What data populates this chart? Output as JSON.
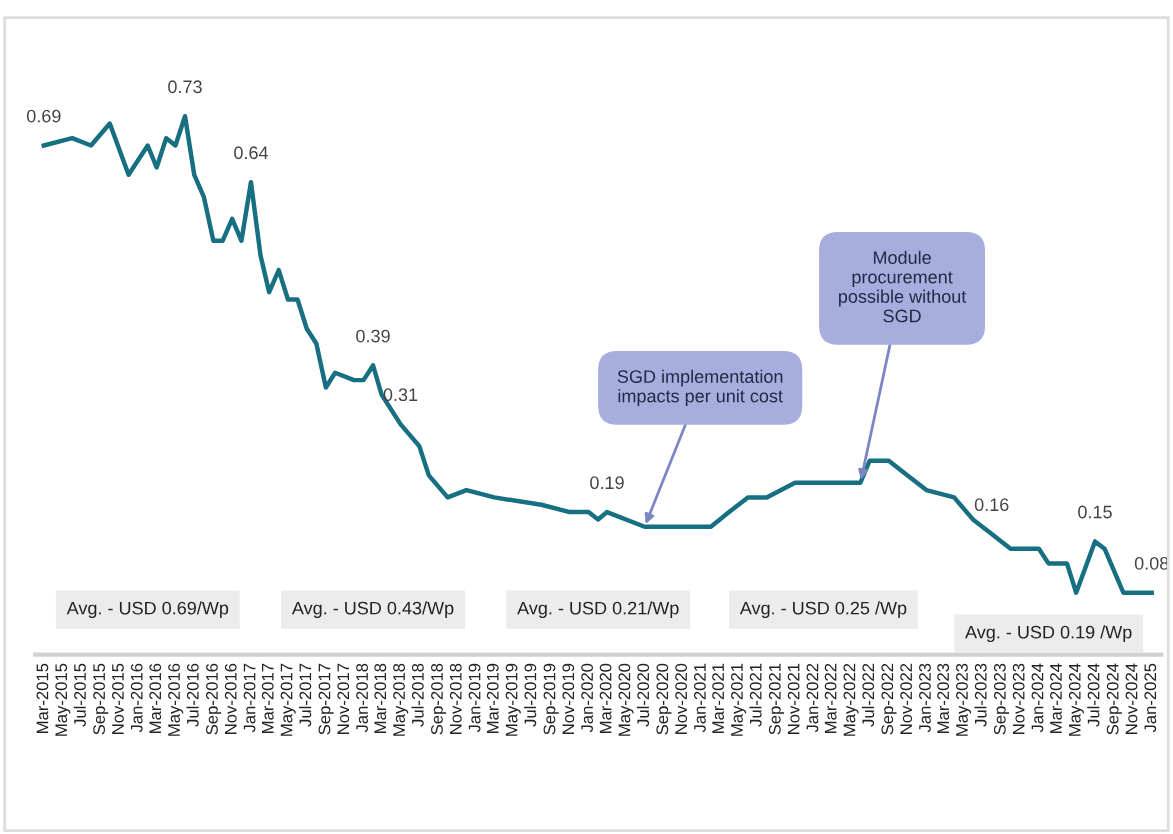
{
  "chart_data": {
    "type": "line",
    "x": [
      "2015-03",
      "2015-06",
      "2015-08",
      "2015-10",
      "2015-12",
      "2016-02",
      "2016-03",
      "2016-04",
      "2016-05",
      "2016-06",
      "2016-07",
      "2016-08",
      "2016-09",
      "2016-10",
      "2016-11",
      "2016-12",
      "2017-01",
      "2017-02",
      "2017-03",
      "2017-04",
      "2017-05",
      "2017-06",
      "2017-07",
      "2017-08",
      "2017-09",
      "2017-10",
      "2017-12",
      "2018-01",
      "2018-02",
      "2018-03",
      "2018-05",
      "2018-07",
      "2018-08",
      "2018-10",
      "2018-12",
      "2019-03",
      "2019-08",
      "2019-11",
      "2020-01",
      "2020-02",
      "2020-03",
      "2020-07",
      "2021-02",
      "2021-04",
      "2021-06",
      "2021-08",
      "2021-11",
      "2022-06",
      "2022-07",
      "2022-09",
      "2022-11",
      "2023-01",
      "2023-04",
      "2023-06",
      "2023-08",
      "2023-10",
      "2024-01",
      "2024-02",
      "2024-04",
      "2024-05",
      "2024-07",
      "2024-08",
      "2024-10",
      "2025-01"
    ],
    "series": [
      {
        "color": "#176f82",
        "values": [
          0.69,
          0.7,
          0.69,
          0.72,
          0.65,
          0.69,
          0.66,
          0.7,
          0.69,
          0.73,
          0.65,
          0.62,
          0.56,
          0.56,
          0.59,
          0.56,
          0.64,
          0.54,
          0.49,
          0.52,
          0.48,
          0.48,
          0.44,
          0.42,
          0.36,
          0.38,
          0.37,
          0.37,
          0.39,
          0.35,
          0.31,
          0.28,
          0.24,
          0.21,
          0.22,
          0.21,
          0.2,
          0.19,
          0.19,
          0.18,
          0.19,
          0.17,
          0.17,
          0.19,
          0.21,
          0.21,
          0.23,
          0.23,
          0.26,
          0.26,
          0.24,
          0.22,
          0.21,
          0.18,
          0.16,
          0.14,
          0.14,
          0.12,
          0.12,
          0.08,
          0.15,
          0.14,
          0.08,
          0.08
        ],
        "value_labels": [
          "0.69",
          null,
          null,
          null,
          null,
          null,
          null,
          null,
          null,
          "0.73",
          null,
          null,
          null,
          null,
          null,
          null,
          "0.64",
          null,
          null,
          null,
          null,
          null,
          null,
          null,
          null,
          null,
          null,
          null,
          "0.39",
          null,
          "0.31",
          null,
          null,
          null,
          null,
          null,
          null,
          null,
          null,
          null,
          "0.19",
          null,
          null,
          null,
          null,
          null,
          null,
          null,
          null,
          null,
          null,
          null,
          null,
          null,
          "0.16",
          null,
          null,
          null,
          null,
          null,
          "0.15",
          null,
          null,
          "0.08"
        ]
      }
    ],
    "xlim": [
      "2015-02",
      "2025-02"
    ],
    "xticks": [
      {
        "value": "2015-03",
        "label": "Mar-2015"
      },
      {
        "value": "2015-05",
        "label": "May-2015"
      },
      {
        "value": "2015-07",
        "label": "Jul-2015"
      },
      {
        "value": "2015-09",
        "label": "Sep-2015"
      },
      {
        "value": "2015-11",
        "label": "Nov-2015"
      },
      {
        "value": "2016-01",
        "label": "Jan-2016"
      },
      {
        "value": "2016-03",
        "label": "Mar-2016"
      },
      {
        "value": "2016-05",
        "label": "May-2016"
      },
      {
        "value": "2016-07",
        "label": "Jul-2016"
      },
      {
        "value": "2016-09",
        "label": "Sep-2016"
      },
      {
        "value": "2016-11",
        "label": "Nov-2016"
      },
      {
        "value": "2017-01",
        "label": "Jan-2017"
      },
      {
        "value": "2017-03",
        "label": "Mar-2017"
      },
      {
        "value": "2017-05",
        "label": "May-2017"
      },
      {
        "value": "2017-07",
        "label": "Jul-2017"
      },
      {
        "value": "2017-09",
        "label": "Sep-2017"
      },
      {
        "value": "2017-11",
        "label": "Nov-2017"
      },
      {
        "value": "2018-01",
        "label": "Jan-2018"
      },
      {
        "value": "2018-03",
        "label": "Mar-2018"
      },
      {
        "value": "2018-05",
        "label": "May-2018"
      },
      {
        "value": "2018-07",
        "label": "Jul-2018"
      },
      {
        "value": "2018-09",
        "label": "Sep-2018"
      },
      {
        "value": "2018-11",
        "label": "Nov-2018"
      },
      {
        "value": "2019-01",
        "label": "Jan-2019"
      },
      {
        "value": "2019-03",
        "label": "Mar-2019"
      },
      {
        "value": "2019-05",
        "label": "May-2019"
      },
      {
        "value": "2019-07",
        "label": "Jul-2019"
      },
      {
        "value": "2019-09",
        "label": "Sep-2019"
      },
      {
        "value": "2019-11",
        "label": "Nov-2019"
      },
      {
        "value": "2020-01",
        "label": "Jan-2020"
      },
      {
        "value": "2020-03",
        "label": "Mar-2020"
      },
      {
        "value": "2020-05",
        "label": "May-2020"
      },
      {
        "value": "2020-07",
        "label": "Jul-2020"
      },
      {
        "value": "2020-09",
        "label": "Sep-2020"
      },
      {
        "value": "2020-11",
        "label": "Nov-2020"
      },
      {
        "value": "2021-01",
        "label": "Jan-2021"
      },
      {
        "value": "2021-03",
        "label": "Mar-2021"
      },
      {
        "value": "2021-05",
        "label": "May-2021"
      },
      {
        "value": "2021-07",
        "label": "Jul-2021"
      },
      {
        "value": "2021-09",
        "label": "Sep-2021"
      },
      {
        "value": "2021-11",
        "label": "Nov-2021"
      },
      {
        "value": "2022-01",
        "label": "Jan-2022"
      },
      {
        "value": "2022-03",
        "label": "Mar-2022"
      },
      {
        "value": "2022-05",
        "label": "May-2022"
      },
      {
        "value": "2022-07",
        "label": "Jul-2022"
      },
      {
        "value": "2022-09",
        "label": "Sep-2022"
      },
      {
        "value": "2022-11",
        "label": "Nov-2022"
      },
      {
        "value": "2023-01",
        "label": "Jan-2023"
      },
      {
        "value": "2023-03",
        "label": "Mar-2023"
      },
      {
        "value": "2023-05",
        "label": "May-2023"
      },
      {
        "value": "2023-07",
        "label": "Jul-2023"
      },
      {
        "value": "2023-09",
        "label": "Sep-2023"
      },
      {
        "value": "2023-11",
        "label": "Nov-2023"
      },
      {
        "value": "2024-01",
        "label": "Jan-2024"
      },
      {
        "value": "2024-03",
        "label": "Mar-2024"
      },
      {
        "value": "2024-05",
        "label": "May-2024"
      },
      {
        "value": "2024-07",
        "label": "Jul-2024"
      },
      {
        "value": "2024-09",
        "label": "Sep-2024"
      },
      {
        "value": "2024-11",
        "label": "Nov-2024"
      },
      {
        "value": "2025-01",
        "label": "Jan-2025"
      }
    ],
    "tick_labels": "x",
    "grid": false,
    "marker": "none",
    "line_style": "solid",
    "annotations": [
      {
        "text": "SGD implementation\nimpacts per unit cost",
        "x": "2020-07",
        "y": 0.17
      },
      {
        "text": "Module\nprocurement\npossible without\nSGD",
        "x": "2022-06",
        "y": 0.23
      },
      "Avg. - USD 0.69/Wp",
      "Avg. - USD 0.43/Wp",
      "Avg. - USD 0.21/Wp",
      "Avg. - USD 0.25 /Wp",
      "Avg. - USD 0.19 /Wp"
    ]
  }
}
